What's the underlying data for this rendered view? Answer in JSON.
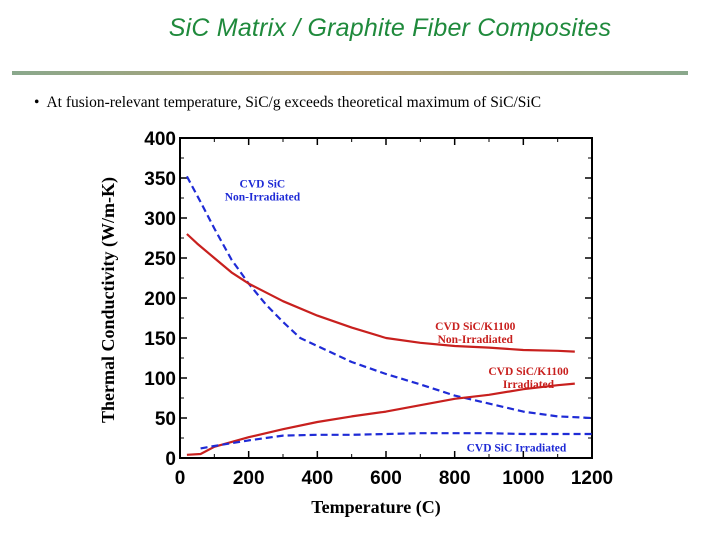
{
  "slide": {
    "title": "SiC Matrix / Graphite Fiber Composites",
    "bullet_marker": "•",
    "bullet_text": "At fusion-relevant temperature, SiC/g exceeds theoretical maximum of SiC/SiC",
    "title_color": "#1f8a3c",
    "rule_color_left": "#8aa88c",
    "rule_color_right": "#b8a070"
  },
  "chart_data": {
    "type": "line",
    "xlabel": "Temperature (C)",
    "ylabel": "Thermal Conductivity (W/m-K)",
    "xlim": [
      0,
      1200
    ],
    "ylim": [
      0,
      400
    ],
    "x_ticks": [
      "0",
      "200",
      "400",
      "600",
      "800",
      "1000",
      "1200"
    ],
    "y_ticks": [
      "0",
      "50",
      "100",
      "150",
      "200",
      "250",
      "300",
      "350",
      "400"
    ],
    "series": [
      {
        "name": "CVD SiC Non-Irradiated",
        "label_lines": [
          "CVD SiC",
          "Non-Irradiated"
        ],
        "color": "#1f2bd6",
        "style": "dashed",
        "x": [
          20,
          60,
          100,
          150,
          200,
          250,
          300,
          350,
          400,
          500,
          600,
          700,
          800,
          900,
          1000,
          1100,
          1200
        ],
        "y": [
          352,
          320,
          287,
          248,
          218,
          192,
          170,
          150,
          140,
          120,
          105,
          92,
          78,
          68,
          58,
          52,
          50
        ]
      },
      {
        "name": "CVD SiC/K1100 Non-Irradiated",
        "label_lines": [
          "CVD SiC/K1100",
          "Non-Irradiated"
        ],
        "color": "#c8201e",
        "style": "solid",
        "x": [
          20,
          50,
          100,
          150,
          200,
          300,
          400,
          500,
          600,
          700,
          800,
          900,
          1000,
          1100,
          1150
        ],
        "y": [
          280,
          268,
          250,
          232,
          218,
          196,
          178,
          163,
          150,
          144,
          140,
          138,
          135,
          134,
          133
        ]
      },
      {
        "name": "CVD SiC/K1100 Irradiated",
        "label_lines": [
          "CVD SiC/K1100",
          "Irradiated"
        ],
        "color": "#c8201e",
        "style": "solid",
        "x": [
          20,
          60,
          100,
          200,
          300,
          400,
          500,
          600,
          700,
          800,
          900,
          1000,
          1100,
          1150
        ],
        "y": [
          4,
          5,
          14,
          26,
          36,
          45,
          52,
          58,
          66,
          74,
          79,
          86,
          91,
          93
        ]
      },
      {
        "name": "CVD SiC Irradiated",
        "label_lines": [
          "CVD SiC Irradiated"
        ],
        "color": "#1f2bd6",
        "style": "dashed",
        "x": [
          60,
          100,
          200,
          300,
          400,
          500,
          600,
          700,
          800,
          900,
          1000,
          1100,
          1200
        ],
        "y": [
          12,
          15,
          22,
          28,
          29,
          29,
          30,
          31,
          31,
          31,
          30,
          30,
          30
        ]
      }
    ],
    "annotations": [
      {
        "lines": [
          "CVD SiC",
          "Non-Irradiated"
        ],
        "at_x": 240,
        "at_y": 338,
        "color": "blue"
      },
      {
        "lines": [
          "CVD SiC/K1100",
          "Non-Irradiated"
        ],
        "at_x": 860,
        "at_y": 160,
        "color": "red"
      },
      {
        "lines": [
          "CVD SiC/K1100",
          "Irradiated"
        ],
        "at_x": 1015,
        "at_y": 104,
        "color": "red"
      },
      {
        "lines": [
          "CVD SiC Irradiated"
        ],
        "at_x": 980,
        "at_y": 8,
        "color": "blue"
      }
    ]
  }
}
